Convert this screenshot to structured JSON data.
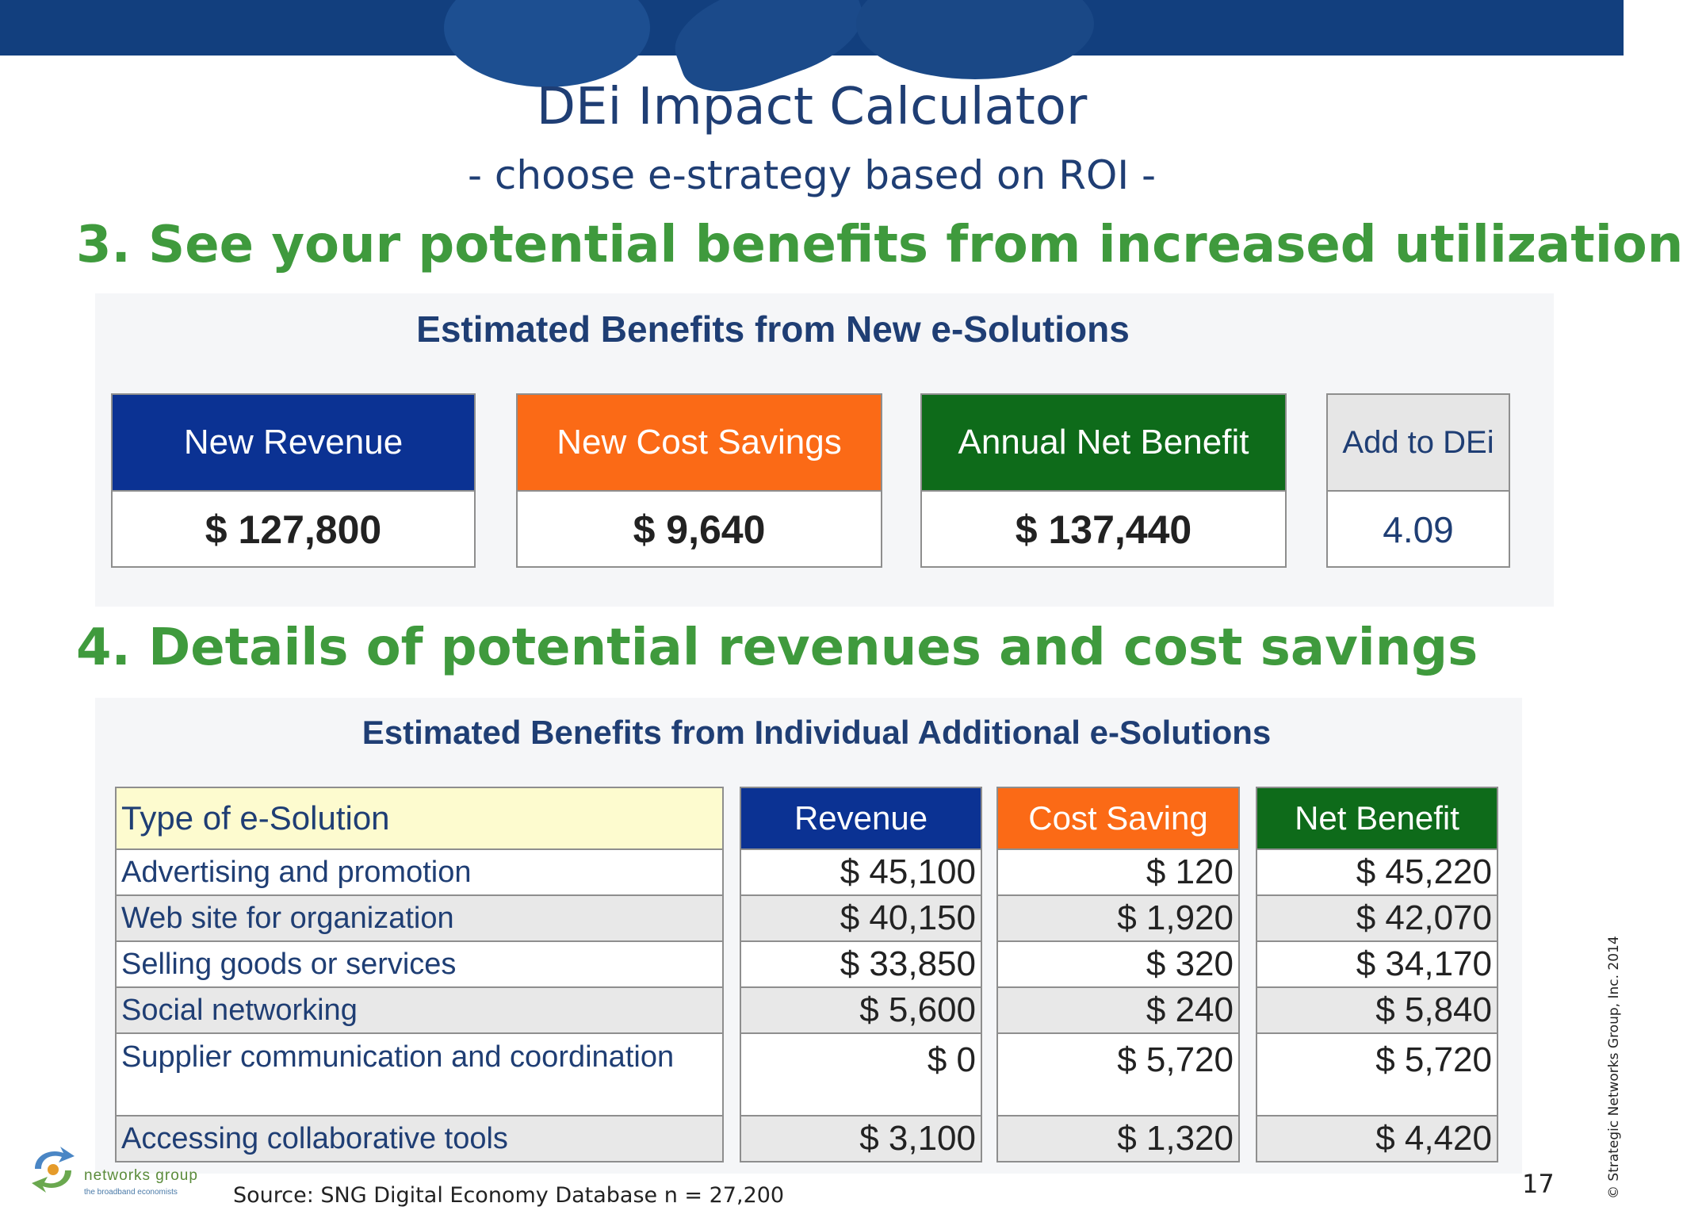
{
  "header": {
    "title": "DEi Impact Calculator",
    "subtitle": "- choose e-strategy based on ROI -"
  },
  "step3": {
    "heading": "3. See your potential benefits from increased utilization",
    "panel_title": "Estimated Benefits from New e-Solutions",
    "cards": [
      {
        "label": "New Revenue",
        "value": "$ 127,800",
        "color": "#0b3293"
      },
      {
        "label": "New Cost Savings",
        "value": "$ 9,640",
        "color": "#fb6a16"
      },
      {
        "label": "Annual Net Benefit",
        "value": "$ 137,440",
        "color": "#0e6b1a"
      },
      {
        "label": "Add to DEi",
        "value": "4.09",
        "color": "#e6e6e6"
      }
    ]
  },
  "step4": {
    "heading": "4. Details of potential revenues and cost savings",
    "panel_title": "Estimated Benefits from Individual Additional e-Solutions",
    "columns": [
      "Type of e-Solution",
      "Revenue",
      "Cost Saving",
      "Net Benefit"
    ],
    "rows": [
      {
        "type": "Advertising and promotion",
        "revenue": "$ 45,100",
        "cost": "$ 120",
        "net": "$ 45,220"
      },
      {
        "type": "Web site for organization",
        "revenue": "$ 40,150",
        "cost": "$ 1,920",
        "net": "$ 42,070"
      },
      {
        "type": "Selling goods or services",
        "revenue": "$ 33,850",
        "cost": "$ 320",
        "net": "$ 34,170"
      },
      {
        "type": "Social networking",
        "revenue": "$ 5,600",
        "cost": "$ 240",
        "net": "$ 5,840"
      },
      {
        "type": "Supplier communication and coordination",
        "revenue": "$ 0",
        "cost": "$ 5,720",
        "net": "$ 5,720"
      },
      {
        "type": "Accessing collaborative tools",
        "revenue": "$ 3,100",
        "cost": "$ 1,320",
        "net": "$ 4,420"
      }
    ]
  },
  "footer": {
    "logo_name": "networks group",
    "logo_tagline": "the broadband economists",
    "source": "Source: SNG Digital Economy Database n = 27,200",
    "page_number": "17",
    "copyright": "© Strategic Networks Group, Inc. 2014"
  },
  "colors": {
    "banner": "#123f7e",
    "title": "#1f3e74",
    "step_heading": "#3f9a3d"
  }
}
